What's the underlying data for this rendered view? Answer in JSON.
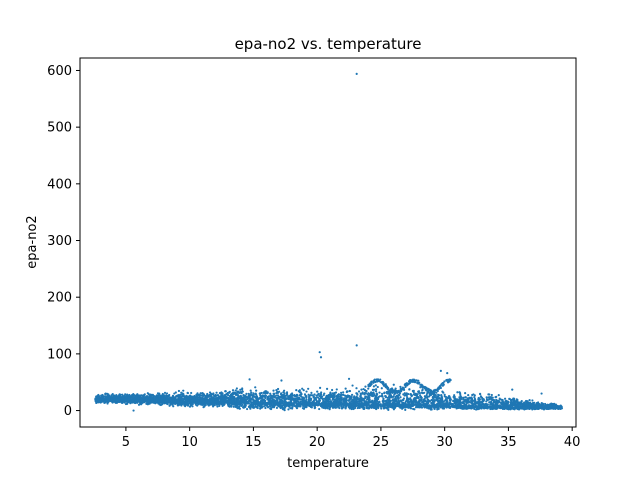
{
  "chart_data": {
    "type": "scatter",
    "title": "epa-no2 vs. temperature",
    "xlabel": "temperature",
    "ylabel": "epa-no2",
    "xlim": [
      1.4,
      40.3
    ],
    "ylim": [
      -29,
      622
    ],
    "xticks": [
      5,
      10,
      15,
      20,
      25,
      30,
      35,
      40
    ],
    "yticks": [
      0,
      100,
      200,
      300,
      400,
      500,
      600
    ],
    "grid": false,
    "legend": "none",
    "marker_color": "#1f77b4",
    "cloud": {
      "x_range": [
        2.6,
        39.2
      ],
      "center_curve": [
        [
          2.6,
          20
        ],
        [
          10,
          18
        ],
        [
          15,
          16
        ],
        [
          20,
          13
        ],
        [
          25,
          12
        ],
        [
          30,
          10
        ],
        [
          35,
          6
        ],
        [
          39.2,
          5
        ]
      ],
      "upper_curve": [
        [
          2.6,
          30
        ],
        [
          5,
          32
        ],
        [
          10,
          38
        ],
        [
          15,
          45
        ],
        [
          20,
          45
        ],
        [
          25,
          50
        ],
        [
          28,
          52
        ],
        [
          30,
          40
        ],
        [
          35,
          30
        ],
        [
          39.2,
          10
        ]
      ],
      "lower_curve": [
        [
          2.6,
          12
        ],
        [
          10,
          5
        ],
        [
          15,
          0
        ],
        [
          20,
          0
        ],
        [
          30,
          0
        ],
        [
          39.2,
          2
        ]
      ]
    },
    "outliers": [
      {
        "x": 23.1,
        "y": 594
      },
      {
        "x": 23.1,
        "y": 115
      },
      {
        "x": 20.2,
        "y": 103
      },
      {
        "x": 20.3,
        "y": 94
      },
      {
        "x": 29.7,
        "y": 70
      },
      {
        "x": 30.2,
        "y": 66
      },
      {
        "x": 14.7,
        "y": 55
      },
      {
        "x": 22.5,
        "y": 56
      },
      {
        "x": 17.2,
        "y": 53
      },
      {
        "x": 35.3,
        "y": 37
      },
      {
        "x": 37.6,
        "y": 30
      },
      {
        "x": 5.6,
        "y": 0
      }
    ]
  }
}
